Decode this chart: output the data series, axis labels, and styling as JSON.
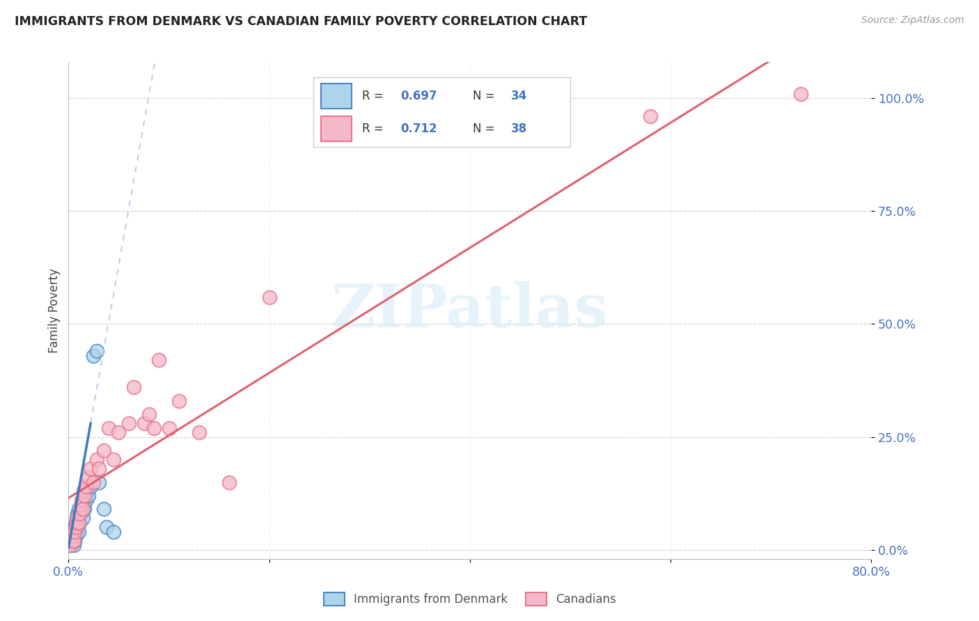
{
  "title": "IMMIGRANTS FROM DENMARK VS CANADIAN FAMILY POVERTY CORRELATION CHART",
  "source": "Source: ZipAtlas.com",
  "ylabel": "Family Poverty",
  "ytick_labels": [
    "0.0%",
    "25.0%",
    "50.0%",
    "75.0%",
    "100.0%"
  ],
  "ytick_values": [
    0.0,
    0.25,
    0.5,
    0.75,
    1.0
  ],
  "xtick_labels": [
    "0.0%",
    "",
    "",
    "",
    "80.0%"
  ],
  "xtick_values": [
    0.0,
    0.2,
    0.4,
    0.6,
    0.8
  ],
  "xlim": [
    0.0,
    0.8
  ],
  "ylim": [
    -0.02,
    1.08
  ],
  "legend_r1": "0.697",
  "legend_n1": "34",
  "legend_r2": "0.712",
  "legend_n2": "38",
  "color_blue_fill": "#aed4ea",
  "color_pink_fill": "#f5b8c8",
  "color_blue_edge": "#4a86c8",
  "color_pink_edge": "#e8758a",
  "color_blue_line": "#3a7abf",
  "color_pink_line": "#e06070",
  "color_blue_dashed": "#b0cce8",
  "color_blue_text": "#4472c4",
  "color_title": "#222222",
  "color_source": "#999999",
  "watermark_color": "#d8ecf8",
  "watermark": "ZIPatlas",
  "legend_box_color": "#f0f7ff",
  "denmark_x": [
    0.002,
    0.003,
    0.004,
    0.004,
    0.005,
    0.005,
    0.005,
    0.006,
    0.006,
    0.007,
    0.007,
    0.008,
    0.008,
    0.009,
    0.009,
    0.01,
    0.01,
    0.011,
    0.012,
    0.013,
    0.014,
    0.015,
    0.016,
    0.017,
    0.018,
    0.019,
    0.02,
    0.022,
    0.025,
    0.028,
    0.03,
    0.035,
    0.038,
    0.045
  ],
  "denmark_y": [
    0.01,
    0.02,
    0.02,
    0.03,
    0.01,
    0.03,
    0.04,
    0.02,
    0.05,
    0.03,
    0.06,
    0.04,
    0.07,
    0.05,
    0.08,
    0.04,
    0.09,
    0.06,
    0.08,
    0.1,
    0.07,
    0.1,
    0.09,
    0.12,
    0.11,
    0.13,
    0.12,
    0.14,
    0.43,
    0.44,
    0.15,
    0.09,
    0.05,
    0.04
  ],
  "canadian_x": [
    0.002,
    0.003,
    0.004,
    0.005,
    0.006,
    0.007,
    0.008,
    0.009,
    0.01,
    0.011,
    0.012,
    0.013,
    0.014,
    0.015,
    0.016,
    0.018,
    0.02,
    0.022,
    0.025,
    0.028,
    0.03,
    0.035,
    0.04,
    0.045,
    0.05,
    0.06,
    0.065,
    0.075,
    0.08,
    0.085,
    0.09,
    0.1,
    0.11,
    0.13,
    0.16,
    0.2,
    0.58,
    0.73
  ],
  "canadian_y": [
    0.01,
    0.02,
    0.03,
    0.02,
    0.04,
    0.05,
    0.06,
    0.07,
    0.06,
    0.08,
    0.1,
    0.11,
    0.09,
    0.13,
    0.12,
    0.14,
    0.16,
    0.18,
    0.15,
    0.2,
    0.18,
    0.22,
    0.27,
    0.2,
    0.26,
    0.28,
    0.36,
    0.28,
    0.3,
    0.27,
    0.42,
    0.27,
    0.33,
    0.26,
    0.15,
    0.56,
    0.96,
    1.01
  ]
}
